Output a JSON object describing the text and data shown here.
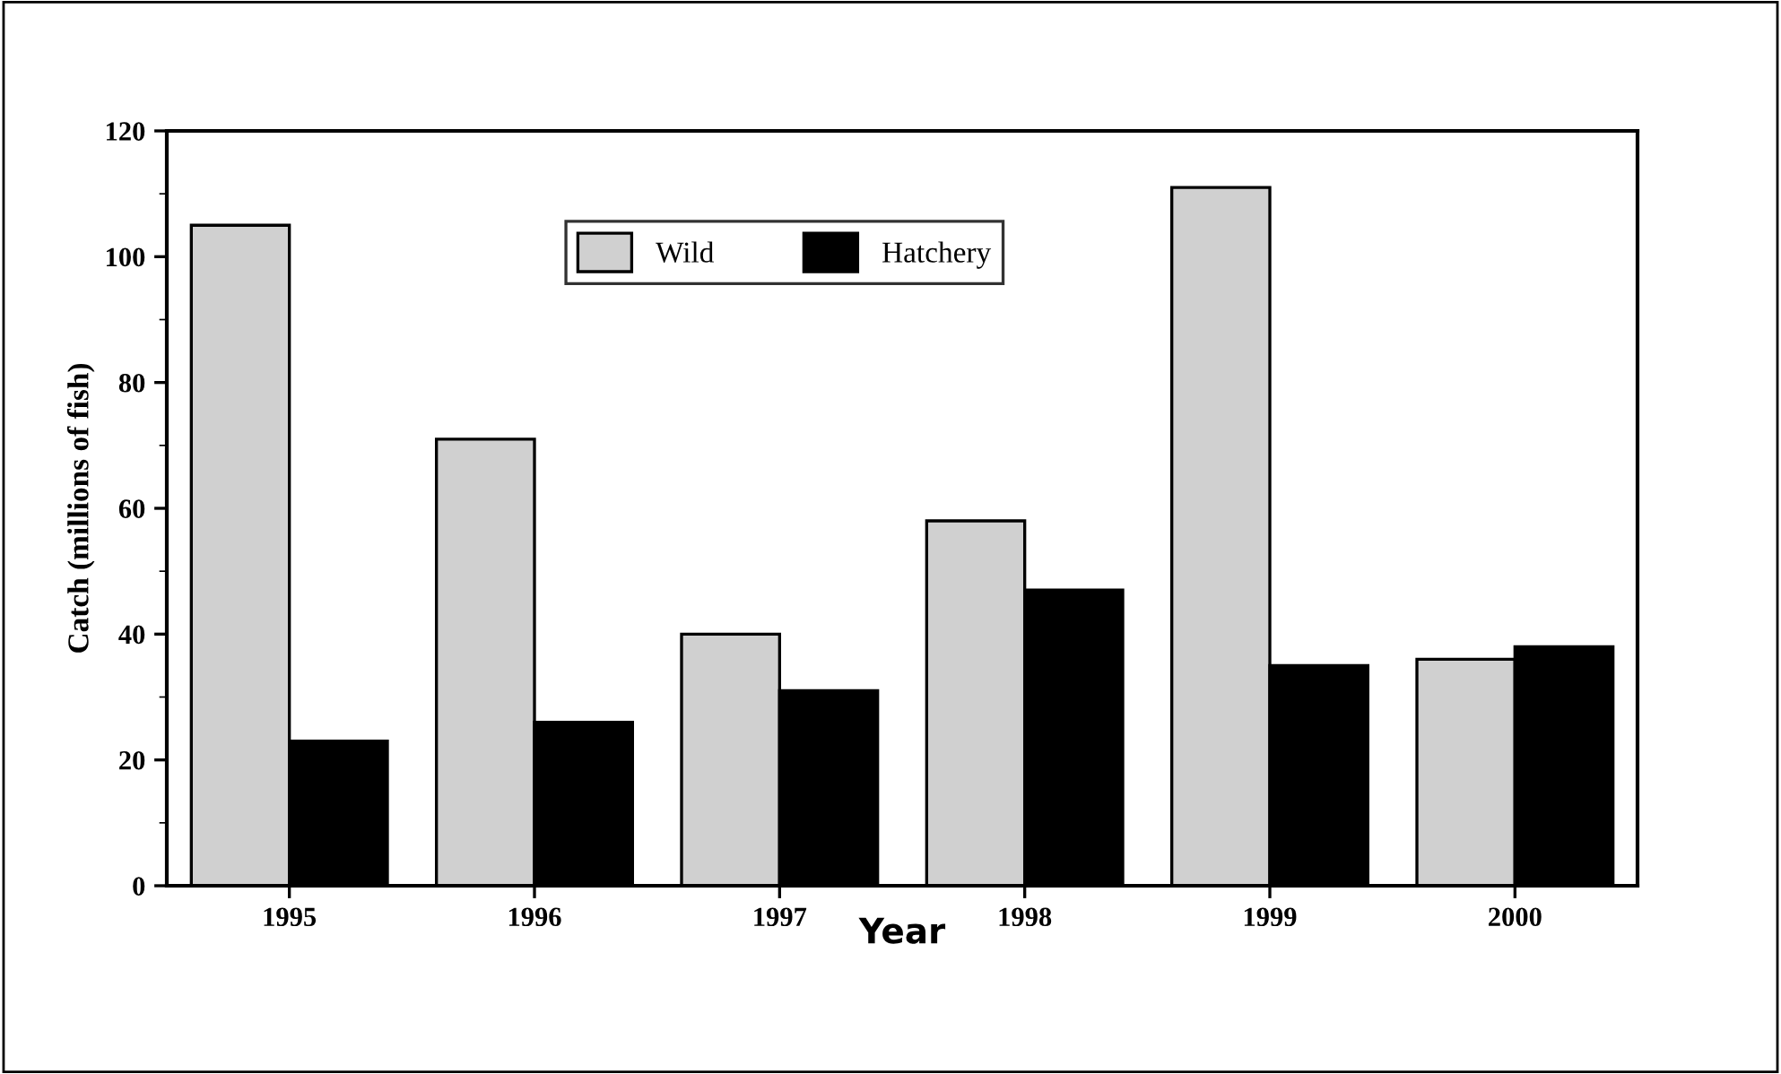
{
  "chart_data": {
    "type": "bar",
    "xlabel": "Year",
    "ylabel": "Catch (millions of fish)",
    "categories": [
      "1995",
      "1996",
      "1997",
      "1998",
      "1999",
      "2000"
    ],
    "series": [
      {
        "name": "Wild",
        "color": "#d0d0d0",
        "values": [
          105,
          71,
          40,
          58,
          111,
          36
        ]
      },
      {
        "name": "Hatchery",
        "color": "#000000",
        "values": [
          23,
          26,
          31,
          47,
          35,
          38
        ]
      }
    ],
    "ylim": [
      0,
      120
    ],
    "yticks": [
      0,
      20,
      40,
      60,
      80,
      100,
      120
    ],
    "grid": false,
    "legend": "top"
  }
}
